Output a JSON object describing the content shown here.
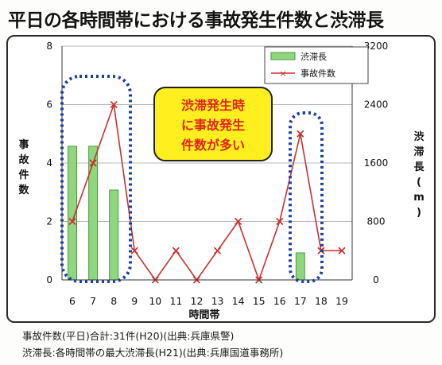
{
  "title": "平日の各時間帯における事故発生件数と渋滞長",
  "footnotes": [
    "事故件数(平日)合計:31件(H20)(出典:兵庫県警)",
    "渋滞長:各時間帯の最大渋滞長(H21)(出典:兵庫国道事務所)"
  ],
  "annotation": {
    "lines": [
      "渋滞発生時",
      "に事故発生",
      "件数が多い"
    ]
  },
  "colors": {
    "bar_fill": "#8fd67f",
    "bar_stroke": "#4a9a40",
    "line": "#c83030",
    "highlight": "#1f3f9a",
    "callout_fill": "#ffef1f",
    "callout_text": "#e2231a"
  },
  "chart_data": {
    "type": "bar+line",
    "xlabel": "時間帯",
    "ylabel_left": "事故件数",
    "ylabel_right": "渋滞長(m)",
    "categories": [
      "6",
      "7",
      "8",
      "9",
      "10",
      "11",
      "12",
      "13",
      "14",
      "15",
      "16",
      "17",
      "18",
      "19"
    ],
    "y_left_ticks": [
      "0",
      "2",
      "4",
      "6",
      "8"
    ],
    "y_right_ticks": [
      "0",
      "800",
      "1600",
      "2400",
      "3200"
    ],
    "ylim_left": [
      0,
      8
    ],
    "ylim_right": [
      0,
      3200
    ],
    "legend": {
      "position": "top-right"
    },
    "series": [
      {
        "name": "渋滞長",
        "type": "bar",
        "axis": "right",
        "values": [
          1830,
          1830,
          1230,
          0,
          0,
          0,
          0,
          0,
          0,
          0,
          0,
          370,
          0,
          0
        ]
      },
      {
        "name": "事故件数",
        "type": "line",
        "axis": "left",
        "values": [
          2,
          4,
          6,
          1,
          0,
          1,
          0,
          1,
          2,
          0,
          2,
          5,
          1,
          1
        ]
      }
    ]
  }
}
